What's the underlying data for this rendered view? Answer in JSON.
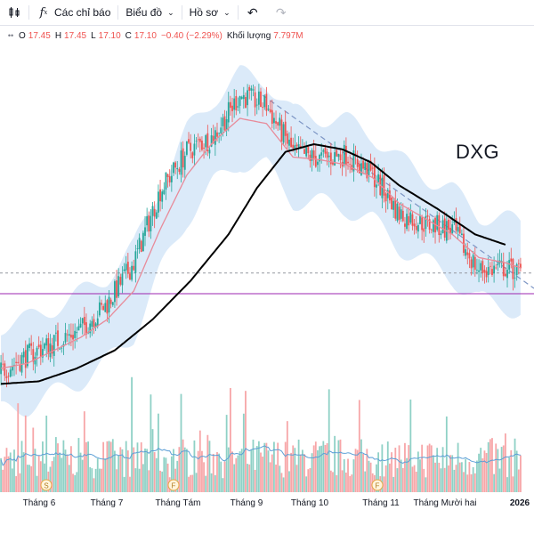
{
  "toolbar": {
    "indicators_label": "Các chỉ báo",
    "chart_type_label": "Biểu đồ",
    "profile_label": "Hồ sơ"
  },
  "legend": {
    "open_key": "O",
    "open": "17.45",
    "high_key": "H",
    "high": "17.45",
    "low_key": "L",
    "low": "17.10",
    "close_key": "C",
    "close": "17.10",
    "change": "−0.40 (−2.29%)",
    "volume_key": "Khối lượng",
    "volume": "7.797M"
  },
  "ticker": "DXG",
  "colors": {
    "up": "#26a69a",
    "down": "#ef5350",
    "vol_up": "#8fd1c6",
    "vol_down": "#f7a6a8",
    "band_fill": "#cfe3f7",
    "ema": "#e88b9a",
    "ma_long": "#000000",
    "trendline": "#7c95c4",
    "support": "#9c27b0",
    "vol_ma": "#5c9fd6"
  },
  "chart_data": {
    "type": "candlestick",
    "x_labels": [
      "Tháng 6",
      "Tháng 7",
      "Tháng Tám",
      "Tháng 9",
      "Tháng 10",
      "Tháng 11",
      "Tháng Mười hai",
      "2026"
    ],
    "event_markers": [
      {
        "label": "S",
        "near": "Tháng 6"
      },
      {
        "label": "F",
        "near": "Tháng Tám"
      },
      {
        "label": "F",
        "near": "Tháng 11"
      }
    ],
    "ylim": [
      12.5,
      25.0
    ],
    "support_level": 16.3,
    "price_path": [
      [
        0,
        13.3
      ],
      [
        14,
        13.9
      ],
      [
        28,
        14.4
      ],
      [
        42,
        14.9
      ],
      [
        56,
        15.9
      ],
      [
        70,
        17.5
      ],
      [
        84,
        20.3
      ],
      [
        98,
        21.8
      ],
      [
        112,
        22.4
      ],
      [
        126,
        24.0
      ],
      [
        140,
        23.6
      ],
      [
        154,
        21.8
      ],
      [
        168,
        21.5
      ],
      [
        182,
        21.7
      ],
      [
        196,
        20.9
      ],
      [
        210,
        19.4
      ],
      [
        224,
        19.0
      ],
      [
        238,
        18.8
      ],
      [
        252,
        17.2
      ],
      [
        266,
        17.3
      ],
      [
        274,
        17.1
      ]
    ],
    "ema_path": [
      [
        0,
        13.4
      ],
      [
        14,
        13.6
      ],
      [
        28,
        14.1
      ],
      [
        42,
        14.6
      ],
      [
        56,
        15.3
      ],
      [
        70,
        16.4
      ],
      [
        84,
        18.8
      ],
      [
        98,
        20.9
      ],
      [
        112,
        22.2
      ],
      [
        126,
        23.1
      ],
      [
        140,
        22.9
      ],
      [
        154,
        21.6
      ],
      [
        168,
        21.5
      ],
      [
        182,
        21.3
      ],
      [
        196,
        20.8
      ],
      [
        210,
        19.8
      ],
      [
        224,
        19.2
      ],
      [
        238,
        18.6
      ],
      [
        252,
        17.7
      ],
      [
        266,
        17.5
      ],
      [
        274,
        17.3
      ]
    ],
    "ma_long_path": [
      [
        0,
        12.8
      ],
      [
        20,
        12.9
      ],
      [
        40,
        13.4
      ],
      [
        60,
        14.1
      ],
      [
        80,
        15.3
      ],
      [
        100,
        16.8
      ],
      [
        120,
        18.6
      ],
      [
        135,
        20.4
      ],
      [
        150,
        21.8
      ],
      [
        165,
        22.1
      ],
      [
        180,
        21.9
      ],
      [
        195,
        21.4
      ],
      [
        210,
        20.5
      ],
      [
        230,
        19.6
      ],
      [
        250,
        18.6
      ],
      [
        266,
        18.2
      ]
    ],
    "band_width": 1.6,
    "trendline": [
      [
        138,
        24.0
      ],
      [
        274,
        16.9
      ]
    ]
  }
}
